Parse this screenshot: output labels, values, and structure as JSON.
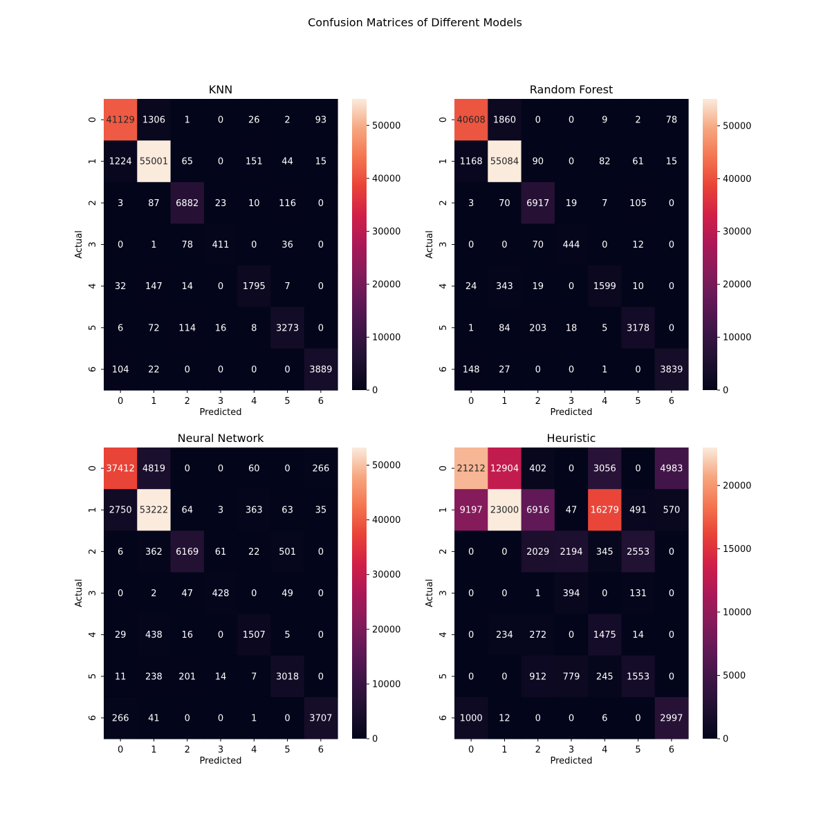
{
  "figure": {
    "title": "Confusion Matrices of Different Models"
  },
  "chart_data": [
    {
      "type": "heatmap",
      "title": "KNN",
      "xlabel": "Predicted",
      "ylabel": "Actual",
      "x_ticks": [
        "0",
        "1",
        "2",
        "3",
        "4",
        "5",
        "6"
      ],
      "y_ticks": [
        "0",
        "1",
        "2",
        "3",
        "4",
        "5",
        "6"
      ],
      "matrix": [
        [
          41129,
          1306,
          1,
          0,
          26,
          2,
          93
        ],
        [
          1224,
          55001,
          65,
          0,
          151,
          44,
          15
        ],
        [
          3,
          87,
          6882,
          23,
          10,
          116,
          0
        ],
        [
          0,
          1,
          78,
          411,
          0,
          36,
          0
        ],
        [
          32,
          147,
          14,
          0,
          1795,
          7,
          0
        ],
        [
          6,
          72,
          114,
          16,
          8,
          3273,
          0
        ],
        [
          104,
          22,
          0,
          0,
          0,
          0,
          3889
        ]
      ],
      "colorbar": {
        "min": 0,
        "max": 55001,
        "ticks": [
          0,
          10000,
          20000,
          30000,
          40000,
          50000
        ]
      },
      "colormap": "rocket"
    },
    {
      "type": "heatmap",
      "title": "Random Forest",
      "xlabel": "Predicted",
      "ylabel": "Actual",
      "x_ticks": [
        "0",
        "1",
        "2",
        "3",
        "4",
        "5",
        "6"
      ],
      "y_ticks": [
        "0",
        "1",
        "2",
        "3",
        "4",
        "5",
        "6"
      ],
      "matrix": [
        [
          40608,
          1860,
          0,
          0,
          9,
          2,
          78
        ],
        [
          1168,
          55084,
          90,
          0,
          82,
          61,
          15
        ],
        [
          3,
          70,
          6917,
          19,
          7,
          105,
          0
        ],
        [
          0,
          0,
          70,
          444,
          0,
          12,
          0
        ],
        [
          24,
          343,
          19,
          0,
          1599,
          10,
          0
        ],
        [
          1,
          84,
          203,
          18,
          5,
          3178,
          0
        ],
        [
          148,
          27,
          0,
          0,
          1,
          0,
          3839
        ]
      ],
      "colorbar": {
        "min": 0,
        "max": 55084,
        "ticks": [
          0,
          10000,
          20000,
          30000,
          40000,
          50000
        ]
      },
      "colormap": "rocket"
    },
    {
      "type": "heatmap",
      "title": "Neural Network",
      "xlabel": "Predicted",
      "ylabel": "Actual",
      "x_ticks": [
        "0",
        "1",
        "2",
        "3",
        "4",
        "5",
        "6"
      ],
      "y_ticks": [
        "0",
        "1",
        "2",
        "3",
        "4",
        "5",
        "6"
      ],
      "matrix": [
        [
          37412,
          4819,
          0,
          0,
          60,
          0,
          266
        ],
        [
          2750,
          53222,
          64,
          3,
          363,
          63,
          35
        ],
        [
          6,
          362,
          6169,
          61,
          22,
          501,
          0
        ],
        [
          0,
          2,
          47,
          428,
          0,
          49,
          0
        ],
        [
          29,
          438,
          16,
          0,
          1507,
          5,
          0
        ],
        [
          11,
          238,
          201,
          14,
          7,
          3018,
          0
        ],
        [
          266,
          41,
          0,
          0,
          1,
          0,
          3707
        ]
      ],
      "colorbar": {
        "min": 0,
        "max": 53222,
        "ticks": [
          0,
          10000,
          20000,
          30000,
          40000,
          50000
        ]
      },
      "colormap": "rocket"
    },
    {
      "type": "heatmap",
      "title": "Heuristic",
      "xlabel": "Predicted",
      "ylabel": "Actual",
      "x_ticks": [
        "0",
        "1",
        "2",
        "3",
        "4",
        "5",
        "6"
      ],
      "y_ticks": [
        "0",
        "1",
        "2",
        "3",
        "4",
        "5",
        "6"
      ],
      "matrix": [
        [
          21212,
          12904,
          402,
          0,
          3056,
          0,
          4983
        ],
        [
          9197,
          23000,
          6916,
          47,
          16279,
          491,
          570
        ],
        [
          0,
          0,
          2029,
          2194,
          345,
          2553,
          0
        ],
        [
          0,
          0,
          1,
          394,
          0,
          131,
          0
        ],
        [
          0,
          234,
          272,
          0,
          1475,
          14,
          0
        ],
        [
          0,
          0,
          912,
          779,
          245,
          1553,
          0
        ],
        [
          1000,
          12,
          0,
          0,
          6,
          0,
          2997
        ]
      ],
      "colorbar": {
        "min": 0,
        "max": 23000,
        "ticks": [
          0,
          5000,
          10000,
          15000,
          20000
        ]
      },
      "colormap": "rocket"
    }
  ]
}
